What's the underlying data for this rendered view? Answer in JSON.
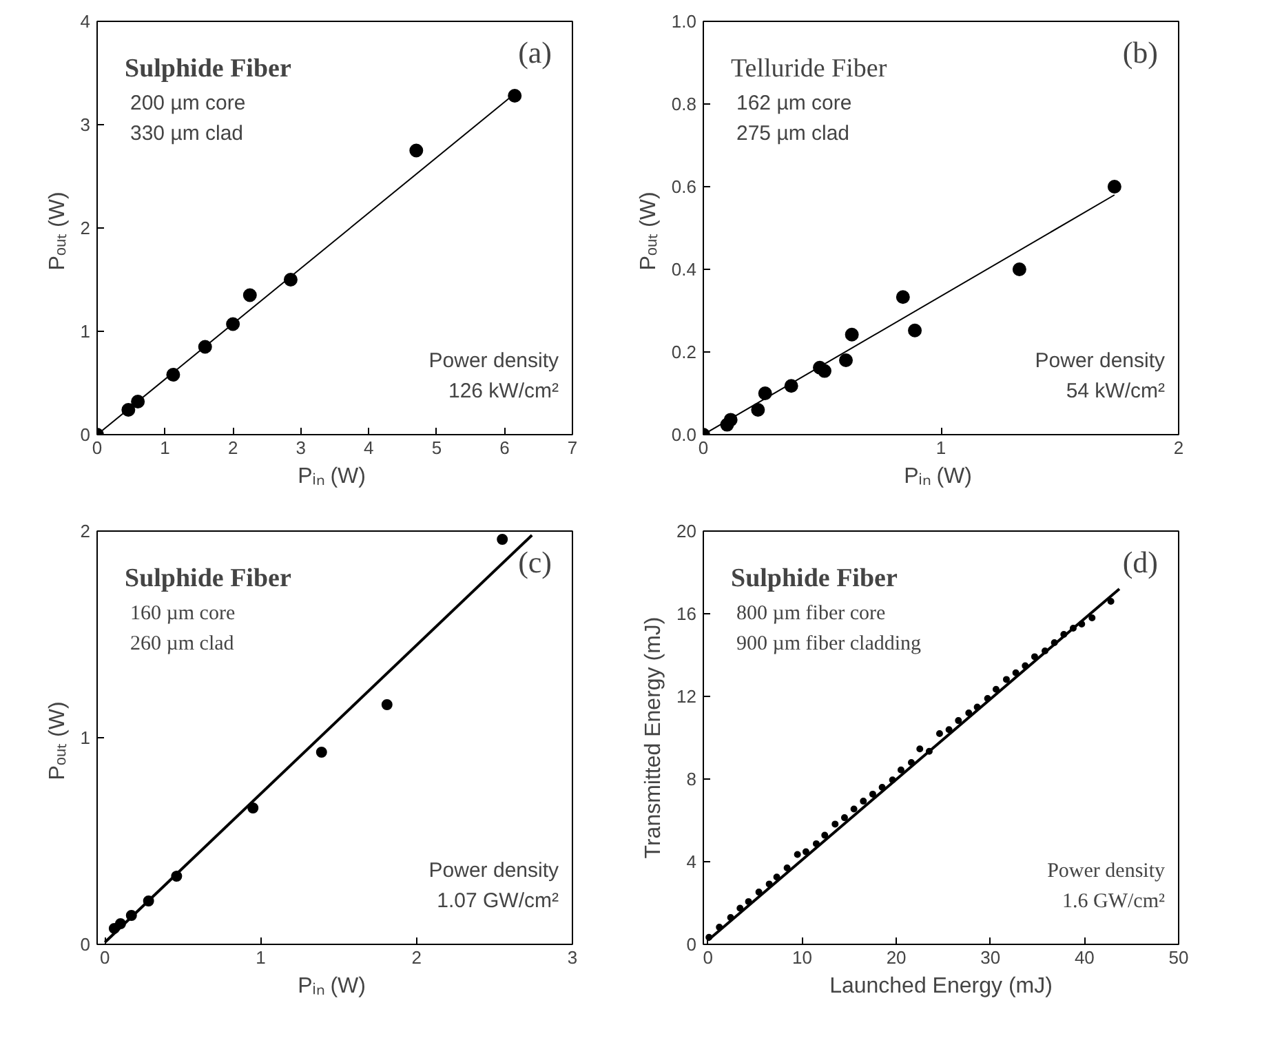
{
  "chart_data": [
    {
      "type": "scatter",
      "xlabel": "Pᵢₙ  (W)",
      "ylabel": "Pₒᵤₜ  (W)",
      "xlim": [
        0,
        7
      ],
      "ylim": [
        0,
        4
      ],
      "xticks": [
        0,
        1,
        2,
        3,
        4,
        5,
        6,
        7
      ],
      "yticks": [
        0,
        1,
        2,
        3,
        4
      ],
      "grid": false,
      "annotations": [
        "(a)",
        "Sulphide Fiber",
        "200 µm core",
        "330 µm clad",
        "Power density",
        "126 kW/cm²"
      ],
      "series": [
        {
          "marker": "circle",
          "color": "#000000",
          "x": [
            0,
            0.46,
            0.6,
            1.12,
            1.59,
            2.0,
            2.25,
            2.85,
            4.7,
            6.15
          ],
          "values": [
            0,
            0.24,
            0.32,
            0.58,
            0.85,
            1.07,
            1.35,
            1.5,
            2.75,
            3.28
          ]
        },
        {
          "type": "line",
          "color": "#000000",
          "x": [
            0,
            6.15
          ],
          "values": [
            0,
            3.3
          ]
        }
      ]
    },
    {
      "type": "scatter",
      "xlabel": "Pᵢₙ  (W)",
      "ylabel": "Pₒᵤₜ  (W)",
      "xlim": [
        0,
        2
      ],
      "ylim": [
        0,
        1
      ],
      "xticks": [
        0,
        1,
        2
      ],
      "yticks": [
        {
          "value": 0,
          "label": "0.0"
        },
        {
          "value": 0.2,
          "label": "0.2"
        },
        {
          "value": 0.4,
          "label": "0.4"
        },
        {
          "value": 0.6,
          "label": "0.6"
        },
        {
          "value": 0.8,
          "label": "0.8"
        },
        {
          "value": 1,
          "label": "1.0"
        }
      ],
      "grid": false,
      "annotations": [
        "(b)",
        "Telluride Fiber",
        "162 µm core",
        "275 µm clad",
        "Power density",
        "54 kW/cm²"
      ],
      "series": [
        {
          "marker": "circle",
          "color": "#000000",
          "x": [
            0,
            0.1,
            0.115,
            0.23,
            0.26,
            0.37,
            0.49,
            0.51,
            0.6,
            0.625,
            0.84,
            0.89,
            1.33,
            1.73
          ],
          "values": [
            0,
            0.024,
            0.036,
            0.06,
            0.1,
            0.118,
            0.162,
            0.154,
            0.18,
            0.242,
            0.333,
            0.252,
            0.4,
            0.6
          ]
        },
        {
          "type": "line",
          "color": "#000000",
          "x": [
            0,
            1.73
          ],
          "values": [
            0,
            0.58
          ]
        }
      ]
    },
    {
      "type": "scatter",
      "xlabel": "Pᵢₙ  (W)",
      "ylabel": "Pₒᵤₜ  (W)",
      "xlim": [
        -0.05,
        3
      ],
      "ylim": [
        0,
        2
      ],
      "xticks": [
        0,
        1,
        2,
        3
      ],
      "yticks": [
        0,
        1,
        2
      ],
      "grid": false,
      "annotations": [
        "(c)",
        "Sulphide Fiber",
        "160 µm core",
        "260 µm clad",
        "Power density",
        "1.07 GW/cm²"
      ],
      "series": [
        {
          "marker": "circle",
          "color": "#000000",
          "x": [
            0.06,
            0.1,
            0.17,
            0.28,
            0.46,
            0.95,
            1.39,
            1.81,
            2.55
          ],
          "values": [
            0.077,
            0.1,
            0.14,
            0.21,
            0.33,
            0.66,
            0.93,
            1.16,
            1.96
          ]
        },
        {
          "type": "line",
          "color": "#000000",
          "x": [
            0,
            2.74
          ],
          "values": [
            0.01,
            1.98
          ]
        }
      ]
    },
    {
      "type": "scatter",
      "xlabel": "Launched Energy (mJ)",
      "ylabel": "Transmitted Energy (mJ)",
      "xlim": [
        -0.5,
        50
      ],
      "ylim": [
        0,
        20
      ],
      "xticks": [
        0,
        10,
        20,
        30,
        40,
        50
      ],
      "yticks": [
        0,
        4,
        8,
        12,
        16,
        20
      ],
      "grid": false,
      "annotations": [
        "(d)",
        "Sulphide Fiber",
        "800 µm fiber core",
        "900 µm fiber cladding",
        "Power density",
        "1.6 GW/cm²"
      ],
      "series": [
        {
          "marker": "circle",
          "color": "#000000",
          "x": [
            0.1,
            1.2,
            2.4,
            3.4,
            4.3,
            5.4,
            6.5,
            7.3,
            8.4,
            9.5,
            10.4,
            11.5,
            12.4,
            13.5,
            14.5,
            15.5,
            16.5,
            17.5,
            18.5,
            19.6,
            20.5,
            21.6,
            22.5,
            23.5,
            24.6,
            25.6,
            26.6,
            27.7,
            28.6,
            29.7,
            30.6,
            31.7,
            32.7,
            33.7,
            34.7,
            35.8,
            36.8,
            37.8,
            38.8,
            39.7,
            40.8,
            42.8
          ],
          "values": [
            0.34,
            0.83,
            1.3,
            1.75,
            2.07,
            2.53,
            2.92,
            3.26,
            3.7,
            4.35,
            4.48,
            4.87,
            5.28,
            5.82,
            6.13,
            6.55,
            6.93,
            7.27,
            7.6,
            7.96,
            8.44,
            8.8,
            9.46,
            9.34,
            10.2,
            10.39,
            10.83,
            11.2,
            11.48,
            11.9,
            12.34,
            12.82,
            13.14,
            13.48,
            13.92,
            14.2,
            14.6,
            15.0,
            15.3,
            15.5,
            15.8,
            16.6
          ]
        },
        {
          "type": "line",
          "color": "#000000",
          "x": [
            0,
            43.7
          ],
          "values": [
            0.2,
            17.2
          ]
        }
      ]
    }
  ]
}
